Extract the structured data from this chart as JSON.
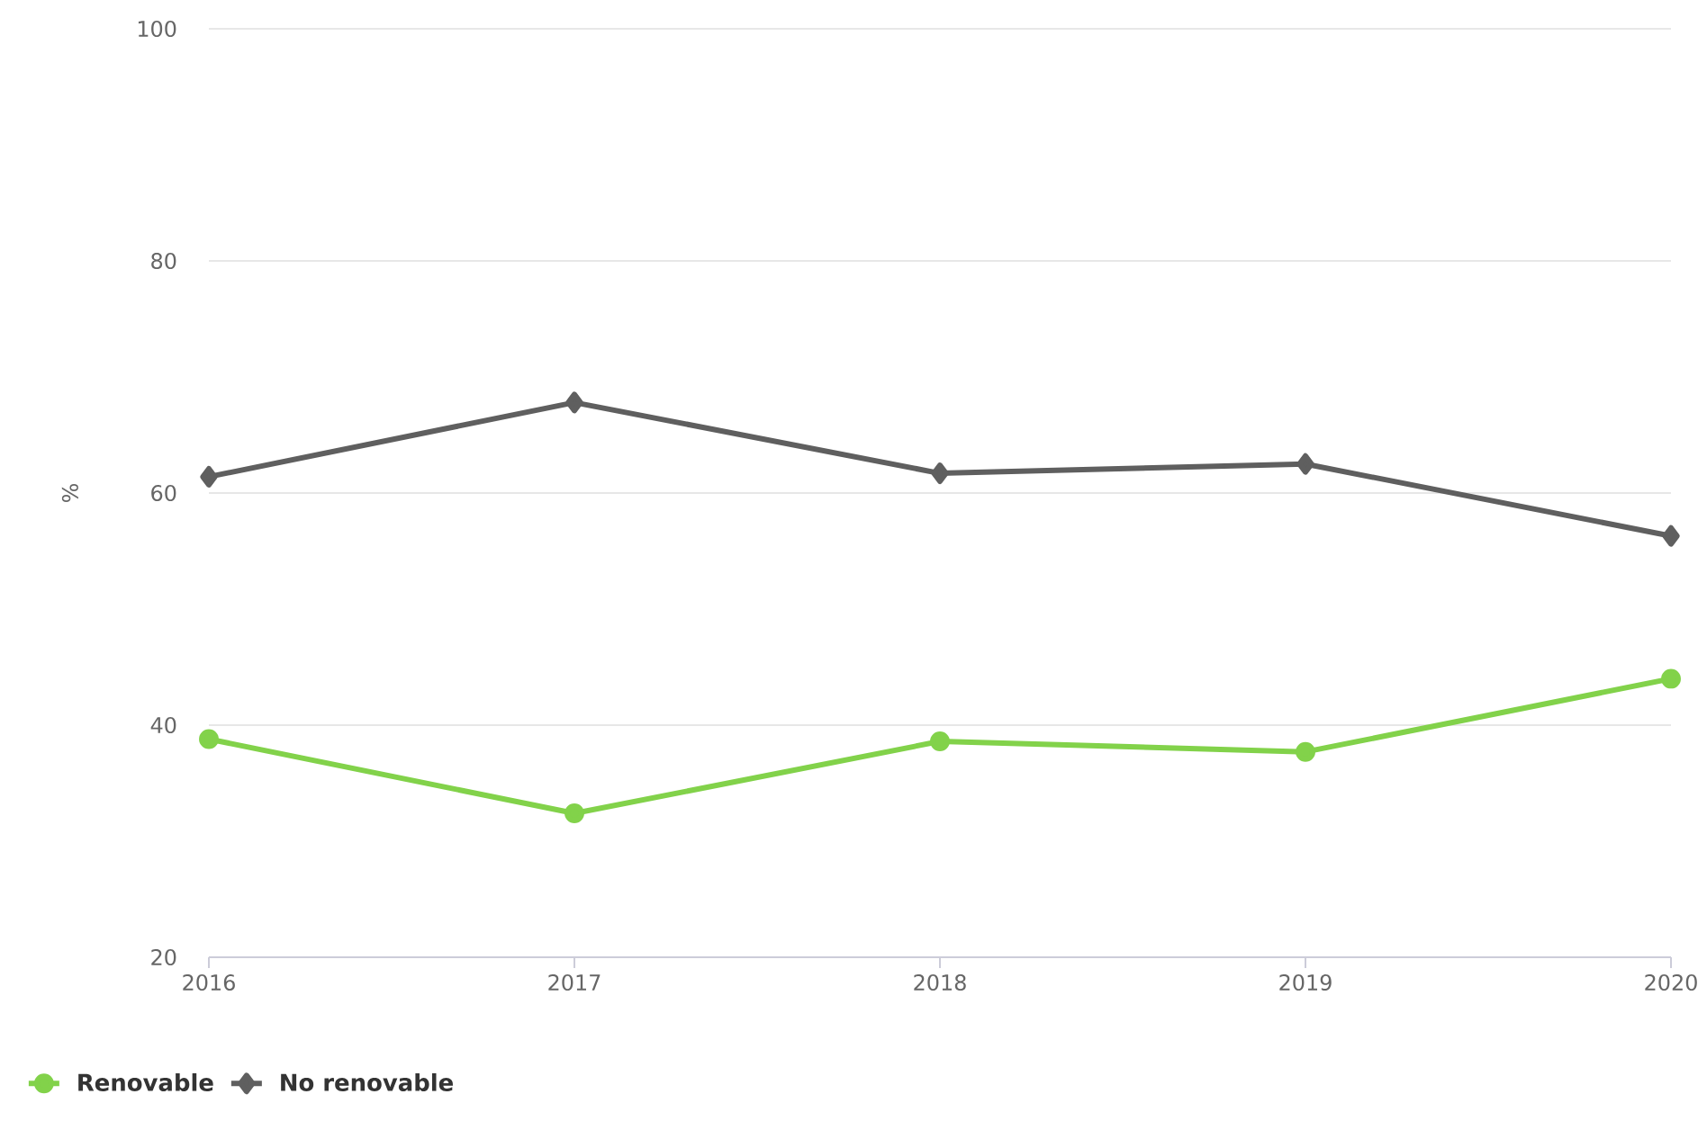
{
  "chart_data": {
    "type": "line",
    "ylabel": "%",
    "categories": [
      "2016",
      "2017",
      "2018",
      "2019",
      "2020"
    ],
    "series": [
      {
        "name": "Renovable",
        "color": "#82d24a",
        "marker": "circle",
        "values": [
          38.8,
          32.4,
          38.6,
          37.7,
          44.0
        ]
      },
      {
        "name": "No renovable",
        "color": "#5f5f5f",
        "marker": "diamond",
        "values": [
          61.4,
          67.8,
          61.7,
          62.5,
          56.3
        ]
      }
    ],
    "ylim": [
      20,
      100
    ],
    "yticks": [
      20,
      40,
      60,
      80,
      100
    ],
    "grid": "y",
    "legend": "bottom left"
  }
}
